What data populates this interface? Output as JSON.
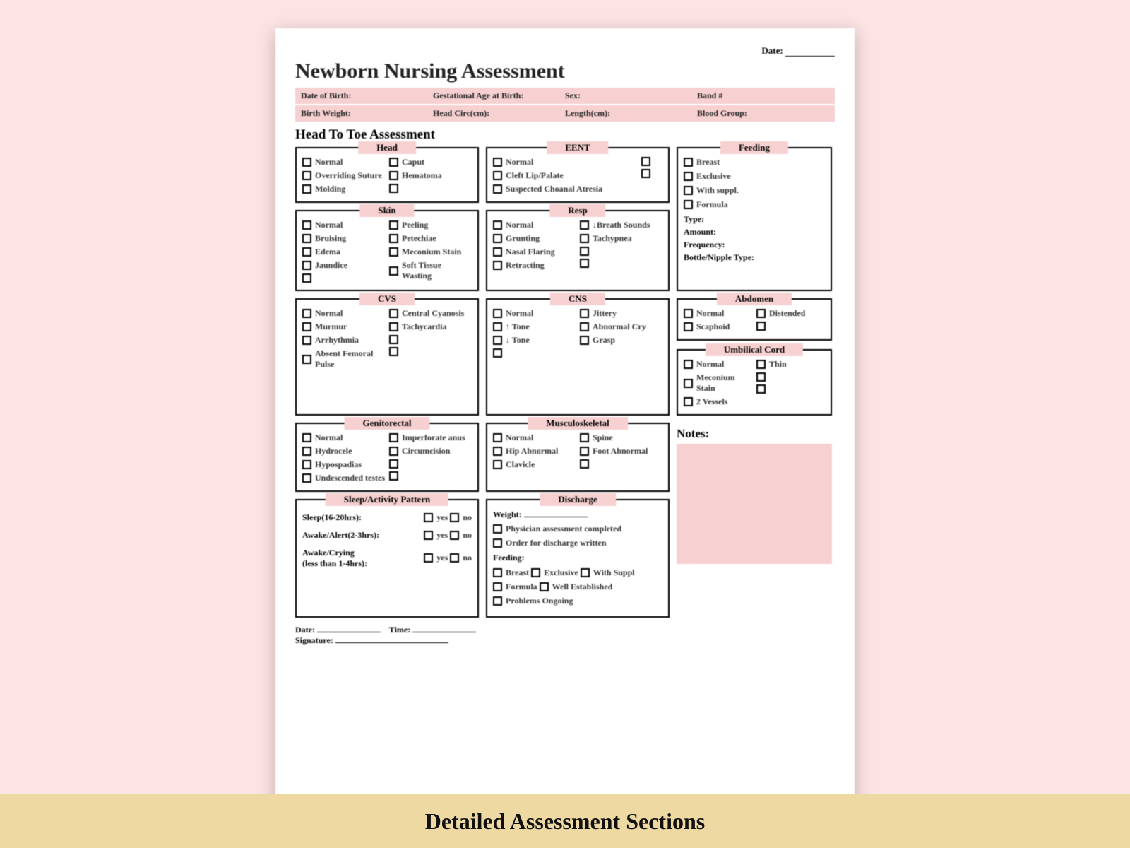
{
  "top": {
    "date_label": "Date:"
  },
  "title": "Newborn Nursing Assessment",
  "info_row1": {
    "a": "Date of Birth:",
    "b": "Gestational Age at Birth:",
    "c": "Sex:",
    "d": "Band #"
  },
  "info_row2": {
    "a": "Birth Weight:",
    "b": "Head Circ(cm):",
    "c": "Length(cm):",
    "d": "Blood Group:"
  },
  "h2": "Head To Toe Assessment",
  "head": {
    "title": "Head",
    "items_l": [
      "Normal",
      "Overriding Suture",
      "Molding"
    ],
    "items_r": [
      "Caput",
      "Hematoma",
      ""
    ]
  },
  "eent": {
    "title": "EENT",
    "items": [
      "Normal",
      "Cleft Lip/Palate",
      "Suspected Choanal Atresia"
    ],
    "blanks": 2
  },
  "feeding": {
    "title": "Feeding",
    "checks": [
      "Breast",
      "Exclusive",
      "With suppl.",
      "Formula"
    ],
    "lines": [
      "Type:",
      "Amount:",
      "Frequency:",
      "Bottle/Nipple Type:"
    ]
  },
  "skin": {
    "title": "Skin",
    "l": [
      "Normal",
      "Bruising",
      "Edema",
      "Jaundice",
      ""
    ],
    "r": [
      "Peeling",
      "Petechiae",
      "Meconium Stain",
      "Soft Tissue Wasting"
    ]
  },
  "resp": {
    "title": "Resp",
    "l": [
      "Normal",
      "Grunting",
      "Nasal Flaring",
      "Retracting"
    ],
    "r": [
      "↓Breath Sounds",
      "Tachypnea",
      "",
      ""
    ]
  },
  "abdomen": {
    "title": "Abdomen",
    "l": [
      "Normal",
      "Scaphoid"
    ],
    "r": [
      "Distended",
      ""
    ]
  },
  "cvs": {
    "title": "CVS",
    "l": [
      "Normal",
      "Murmur",
      "Arrhythmia",
      "Absent Femoral Pulse"
    ],
    "r": [
      "Central Cyanosis",
      "Tachycardia",
      "",
      ""
    ]
  },
  "cns": {
    "title": "CNS",
    "l": [
      "Normal",
      "↑ Tone",
      "↓ Tone",
      ""
    ],
    "r": [
      "Jittery",
      "Abnormal Cry",
      "Grasp"
    ]
  },
  "umb": {
    "title": "Umbilical Cord",
    "l": [
      "Normal",
      "Meconium Stain",
      "2 Vessels"
    ],
    "r": [
      "Thin",
      "",
      ""
    ]
  },
  "genito": {
    "title": "Genitorectal",
    "l": [
      "Normal",
      "Hydrocele",
      "Hypospadias",
      "Undescended testes"
    ],
    "r": [
      "Imperforate anus",
      "Circumcision",
      "",
      ""
    ]
  },
  "msk": {
    "title": "Musculoskeletal",
    "l": [
      "Normal",
      "Hip Abnormal",
      "Clavicle"
    ],
    "r": [
      "Spine",
      "Foot Abnormal",
      ""
    ]
  },
  "sleep": {
    "title": "Sleep/Activity Pattern",
    "rows": [
      "Sleep(16-20hrs):",
      "Awake/Alert(2-3hrs):",
      "Awake/Crying\n(less than 1-4hrs):"
    ],
    "yes": "yes",
    "no": "no"
  },
  "discharge": {
    "title": "Discharge",
    "weight": "Weight:",
    "items": [
      "Physician assessment completed",
      "Order for discharge written"
    ],
    "feeding_label": "Feeding:",
    "feeding_opts": [
      "Breast",
      "Exclusive",
      "With Suppl",
      "Formula",
      "Well Established",
      "Problems Ongoing"
    ]
  },
  "sig": {
    "date": "Date:",
    "time": "Time:",
    "signature": "Signature:"
  },
  "notes": "Notes:",
  "caption": "Detailed Assessment Sections",
  "colors": {
    "page_bg": "#fde4e4",
    "accent": "#f7d1d1",
    "caption_bg": "#eed9a3"
  }
}
